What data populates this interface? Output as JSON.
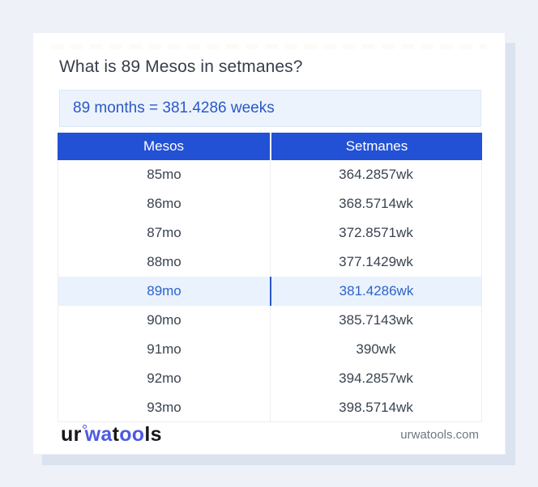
{
  "page": {
    "title": "What is 89 Mesos in setmanes?",
    "result_text": "89 months = 381.4286 weeks"
  },
  "table": {
    "headers": [
      "Mesos",
      "Setmanes"
    ],
    "highlighted_row_index": 4,
    "rows": [
      [
        "85mo",
        "364.2857wk"
      ],
      [
        "86mo",
        "368.5714wk"
      ],
      [
        "87mo",
        "372.8571wk"
      ],
      [
        "88mo",
        "377.1429wk"
      ],
      [
        "89mo",
        "381.4286wk"
      ],
      [
        "90mo",
        "385.7143wk"
      ],
      [
        "91mo",
        "390wk"
      ],
      [
        "92mo",
        "394.2857wk"
      ],
      [
        "93mo",
        "398.5714wk"
      ]
    ]
  },
  "footer": {
    "logo_parts": {
      "p1": "ur",
      "p2": "wa",
      "p3": "t",
      "p4": "oo",
      "p5": "ls"
    },
    "domain": "urwatools.com"
  },
  "colors": {
    "page_bg": "#eef1f8",
    "card_shadow": "#dbe2f0",
    "header_blue": "#2251d5",
    "result_box_bg": "#ecf3fc",
    "result_text_blue": "#2b58c6",
    "highlight_row_bg": "#e9f2fd",
    "highlight_text_blue": "#2e62c9",
    "highlight_divider_blue": "#2b57c8",
    "body_text": "#3a4350",
    "logo_blue": "#4d5ae0"
  }
}
